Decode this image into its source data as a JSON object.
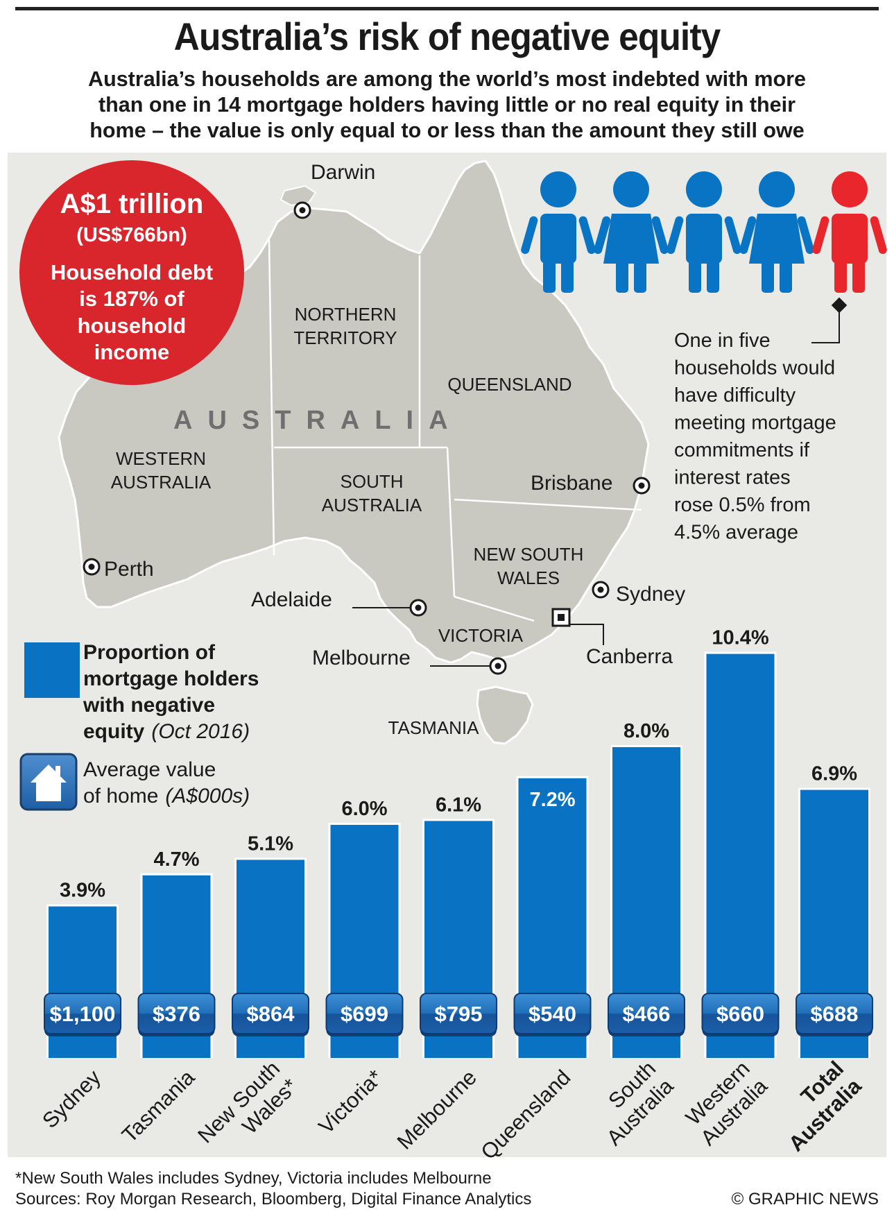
{
  "header": {
    "title": "Australia’s risk of negative equity",
    "subtitle_lines": [
      "Australia’s households are among the world’s most indebted with more",
      "than one in 14 mortgage holders having little or no real equity in their",
      "home – the value is only equal to or less than the amount they still owe"
    ]
  },
  "debt_callout": {
    "amount": "A$1 trillion",
    "amount_usd": "(US$766bn)",
    "lines": [
      "Household debt",
      "is 187% of",
      "household",
      "income"
    ],
    "color": "#d9262c"
  },
  "map": {
    "country_label": "AUSTRALIA",
    "regions": [
      "NORTHERN TERRITORY",
      "QUEENSLAND",
      "WESTERN AUSTRALIA",
      "SOUTH AUSTRALIA",
      "NEW SOUTH WALES",
      "VICTORIA",
      "TASMANIA"
    ],
    "cities": [
      "Darwin",
      "Brisbane",
      "Perth",
      "Sydney",
      "Adelaide",
      "Canberra",
      "Melbourne"
    ]
  },
  "people_callout": {
    "icon": "person-icon",
    "count": 5,
    "highlighted_index": 4,
    "colors": {
      "normal": "#0a74c4",
      "highlight": "#e8262c"
    },
    "text_lines": [
      "One in five",
      "households would",
      "have difficulty",
      "meeting mortgage",
      "commitments if",
      "interest rates",
      "rose 0.5% from",
      "4.5% average"
    ]
  },
  "legend": {
    "bar_label_lines": [
      "Proportion of",
      "mortgage holders",
      "with negative"
    ],
    "bar_label_last": "equity",
    "bar_label_note": "(Oct 2016)",
    "home_label_line1": "Average value",
    "home_label_line2_prefix": "of home",
    "home_label_note": "(A$000s)",
    "home_icon": "house-icon"
  },
  "chart_data": {
    "type": "bar",
    "categories": [
      "Sydney",
      "Tasmania",
      "New South Wales*",
      "Victoria*",
      "Melbourne",
      "Queensland",
      "South Australia",
      "Western Australia",
      "Total Australia"
    ],
    "category_lines": [
      [
        "Sydney"
      ],
      [
        "Tasmania"
      ],
      [
        "New South",
        "Wales*"
      ],
      [
        "Victoria*"
      ],
      [
        "Melbourne"
      ],
      [
        "Queensland"
      ],
      [
        "South",
        "Australia"
      ],
      [
        "Western",
        "Australia"
      ],
      [
        "Total",
        "Australia"
      ]
    ],
    "series": [
      {
        "values": [
          3.9,
          4.7,
          5.1,
          6.0,
          6.1,
          7.2,
          8.0,
          10.4,
          6.9
        ]
      }
    ],
    "value_labels": [
      "3.9%",
      "4.7%",
      "5.1%",
      "6.0%",
      "6.1%",
      "7.2%",
      "8.0%",
      "10.4%",
      "6.9%"
    ],
    "home_values": [
      "$1,100",
      "$376",
      "$864",
      "$699",
      "$795",
      "$540",
      "$466",
      "$660",
      "$688"
    ],
    "bold_category_index": 8,
    "bar_color": "#0a72c2",
    "ylim": [
      0,
      12
    ],
    "grid": false
  },
  "footer": {
    "footnote": "*New South Wales includes Sydney, Victoria includes Melbourne",
    "sources": "Sources: Roy Morgan Research, Bloomberg, Digital Finance Analytics",
    "credit": "© GRAPHIC NEWS"
  }
}
